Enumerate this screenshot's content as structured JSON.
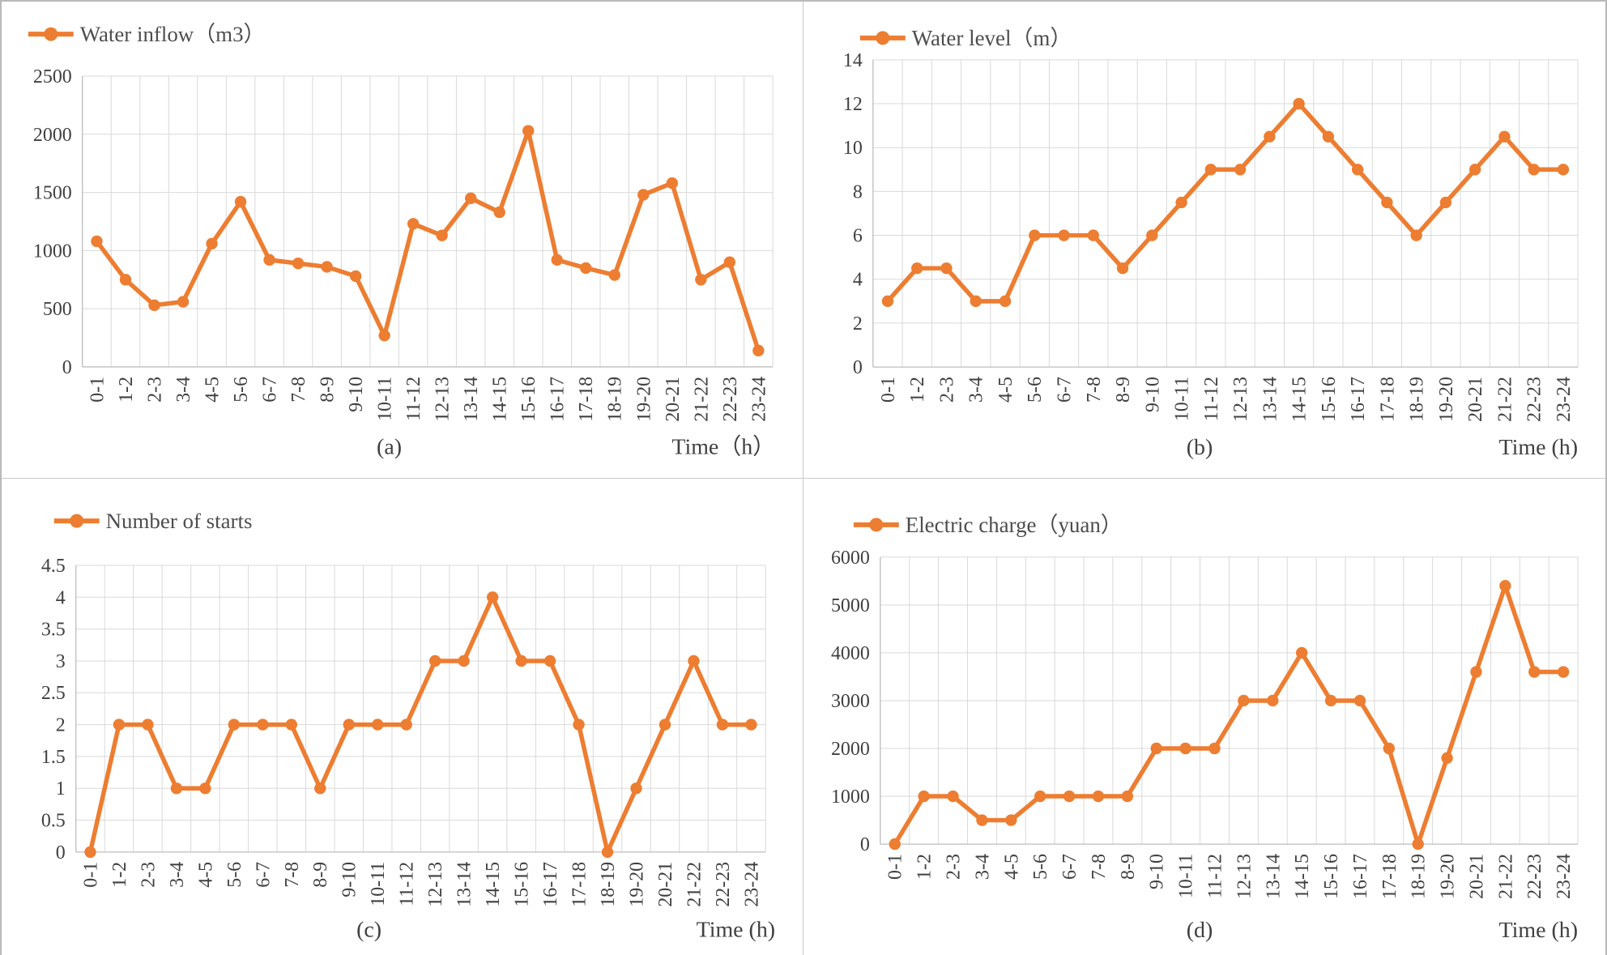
{
  "figure": {
    "accent_color": "#ED7D31",
    "grid_color": "#D9D9D9",
    "axis_color": "#BFBFBF",
    "text_color": "#404040",
    "legend_text_color": "#4d4d4d"
  },
  "categories": [
    "0-1",
    "1-2",
    "2-3",
    "3-4",
    "4-5",
    "5-6",
    "6-7",
    "7-8",
    "8-9",
    "9-10",
    "10-11",
    "11-12",
    "12-13",
    "13-14",
    "14-15",
    "15-16",
    "16-17",
    "17-18",
    "18-19",
    "19-20",
    "20-21",
    "21-22",
    "22-23",
    "23-24"
  ],
  "chart_data": [
    {
      "id": "a",
      "type": "line",
      "legend": "Water inflow（m3）",
      "caption": "(a)",
      "xlabel": "Time（h）",
      "ylim": [
        0,
        2500
      ],
      "y_ticks": [
        0,
        500,
        1000,
        1500,
        2000,
        2500
      ],
      "grid": true,
      "legend_position": "top-left",
      "values": [
        1080,
        750,
        530,
        560,
        1060,
        1420,
        920,
        890,
        860,
        780,
        270,
        1230,
        1130,
        1450,
        1330,
        2030,
        920,
        850,
        790,
        1480,
        1580,
        750,
        900,
        140
      ]
    },
    {
      "id": "b",
      "type": "line",
      "legend": "Water level（m）",
      "caption": "(b)",
      "xlabel": "Time (h)",
      "ylim": [
        0,
        14
      ],
      "y_ticks": [
        0,
        2,
        4,
        6,
        8,
        10,
        12,
        14
      ],
      "grid": true,
      "legend_position": "top-left",
      "values": [
        3,
        4.5,
        4.5,
        3,
        3,
        6,
        6,
        6,
        4.5,
        6,
        7.5,
        9,
        9,
        10.5,
        12,
        10.5,
        9,
        7.5,
        6,
        7.5,
        9,
        10.5,
        9,
        9
      ]
    },
    {
      "id": "c",
      "type": "line",
      "legend": "Number of starts",
      "caption": "(c)",
      "xlabel": "Time (h)",
      "ylim": [
        0,
        4.5
      ],
      "y_ticks": [
        0,
        0.5,
        1,
        1.5,
        2,
        2.5,
        3,
        3.5,
        4,
        4.5
      ],
      "grid": true,
      "legend_position": "top-left",
      "values": [
        0,
        2,
        2,
        1,
        1,
        2,
        2,
        2,
        1,
        2,
        2,
        2,
        3,
        3,
        4,
        3,
        3,
        2,
        0,
        1,
        2,
        3,
        2,
        2
      ]
    },
    {
      "id": "d",
      "type": "line",
      "legend": "Electric charge（yuan）",
      "caption": "(d)",
      "xlabel": "Time (h)",
      "ylim": [
        0,
        6000
      ],
      "y_ticks": [
        0,
        1000,
        2000,
        3000,
        4000,
        5000,
        6000
      ],
      "grid": true,
      "legend_position": "top-left",
      "values": [
        0,
        1000,
        1000,
        500,
        500,
        1000,
        1000,
        1000,
        1000,
        2000,
        2000,
        2000,
        3000,
        3000,
        4000,
        3000,
        3000,
        2000,
        0,
        1800,
        3600,
        5400,
        3600,
        3600
      ]
    }
  ]
}
